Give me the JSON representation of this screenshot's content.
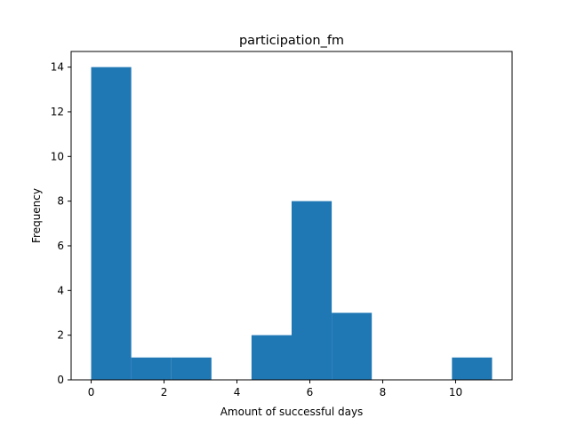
{
  "chart_data": {
    "type": "bar",
    "subtype": "histogram",
    "title": "participation_fm",
    "xlabel": "Amount of successful days",
    "ylabel": "Frequency",
    "bins": [
      {
        "start": 0.0,
        "end": 1.1,
        "count": 14
      },
      {
        "start": 1.1,
        "end": 2.2,
        "count": 1
      },
      {
        "start": 2.2,
        "end": 3.3,
        "count": 1
      },
      {
        "start": 3.3,
        "end": 4.4,
        "count": 0
      },
      {
        "start": 4.4,
        "end": 5.5,
        "count": 2
      },
      {
        "start": 5.5,
        "end": 6.6,
        "count": 8
      },
      {
        "start": 6.6,
        "end": 7.7,
        "count": 3
      },
      {
        "start": 7.7,
        "end": 8.8,
        "count": 0
      },
      {
        "start": 8.8,
        "end": 9.9,
        "count": 0
      },
      {
        "start": 9.9,
        "end": 11.0,
        "count": 1
      }
    ],
    "xlim": [
      -0.55,
      11.55
    ],
    "ylim": [
      0,
      14.7
    ],
    "xticks": [
      0,
      2,
      4,
      6,
      8,
      10
    ],
    "yticks": [
      0,
      2,
      4,
      6,
      8,
      10,
      12,
      14
    ],
    "bar_color": "#1f77b4",
    "grid": false,
    "legend": "none"
  }
}
